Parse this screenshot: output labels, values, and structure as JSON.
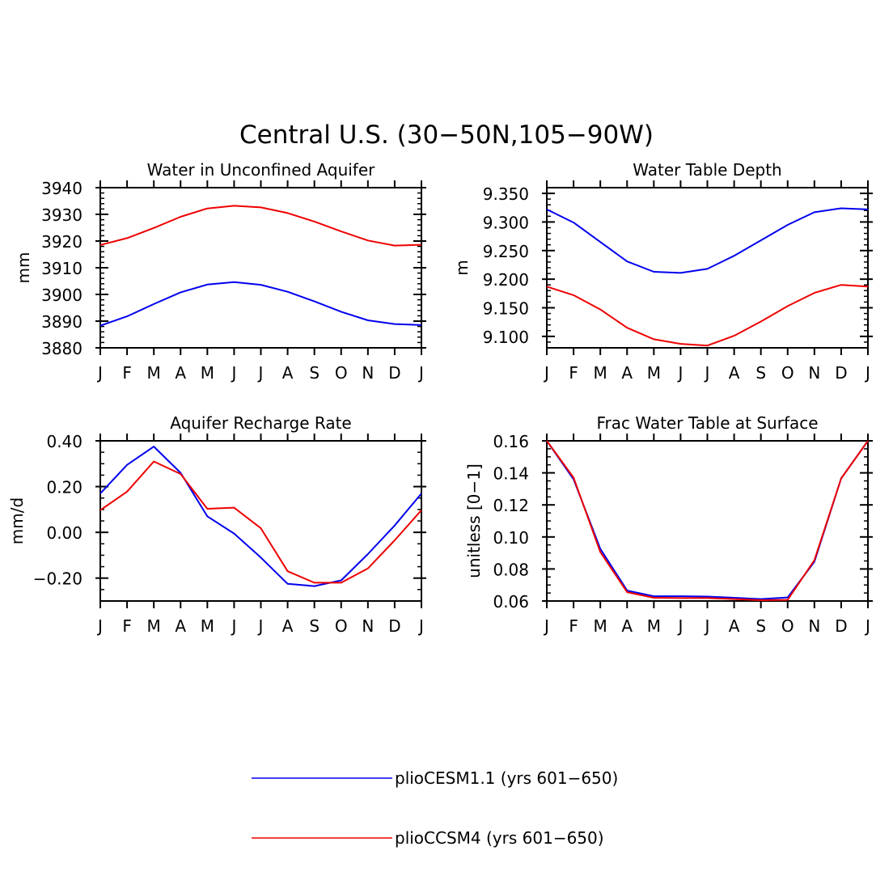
{
  "figure": {
    "title": "Central U.S. (30−50N,105−90W)"
  },
  "colors": {
    "blue": "#0000ee",
    "red": "#ee0000",
    "axis": "#000000"
  },
  "legend": [
    {
      "name": "plioCESM1.1 (yrs 601−650)",
      "color": "#0000ee"
    },
    {
      "name": "plioCCSM4 (yrs 601−650)",
      "color": "#ee0000"
    }
  ],
  "chart_data": [
    {
      "type": "line",
      "title": "Water in Unconfined Aquifer",
      "ylabel": "mm",
      "xlabel": "",
      "categories": [
        "J",
        "F",
        "M",
        "A",
        "M",
        "J",
        "J",
        "A",
        "S",
        "O",
        "N",
        "D",
        "J"
      ],
      "ylim": [
        3880,
        3940
      ],
      "yticks": [
        3880,
        3890,
        3900,
        3910,
        3920,
        3930,
        3940
      ],
      "yticklabels": [
        "3880",
        "3890",
        "3900",
        "3910",
        "3920",
        "3930",
        "3940"
      ],
      "yminor": 2,
      "series": [
        {
          "name": "plioCESM1.1 (yrs 601−650)",
          "color": "#0000ee",
          "values": [
            3888.3,
            3891.8,
            3896.4,
            3900.8,
            3903.7,
            3904.6,
            3903.6,
            3901.0,
            3897.4,
            3893.5,
            3890.3,
            3888.9,
            3888.5
          ]
        },
        {
          "name": "plioCCSM4 (yrs 601−650)",
          "color": "#ee0000",
          "values": [
            3918.5,
            3921.1,
            3924.9,
            3929.1,
            3932.2,
            3933.2,
            3932.6,
            3930.5,
            3927.3,
            3923.6,
            3920.2,
            3918.3,
            3918.6
          ]
        }
      ]
    },
    {
      "type": "line",
      "title": "Water Table Depth",
      "ylabel": "m",
      "xlabel": "",
      "categories": [
        "J",
        "F",
        "M",
        "A",
        "M",
        "J",
        "J",
        "A",
        "S",
        "O",
        "N",
        "D",
        "J"
      ],
      "ylim": [
        9.08,
        9.36
      ],
      "yticks": [
        9.1,
        9.15,
        9.2,
        9.25,
        9.3,
        9.35
      ],
      "yticklabels": [
        "9.100",
        "9.150",
        "9.200",
        "9.250",
        "9.300",
        "9.350"
      ],
      "yminor": 0.01,
      "series": [
        {
          "name": "plioCESM1.1 (yrs 601−650)",
          "color": "#0000ee",
          "values": [
            9.322,
            9.299,
            9.265,
            9.231,
            9.213,
            9.211,
            9.218,
            9.241,
            9.268,
            9.295,
            9.317,
            9.324,
            9.322
          ]
        },
        {
          "name": "plioCCSM4 (yrs 601−650)",
          "color": "#ee0000",
          "values": [
            9.187,
            9.172,
            9.147,
            9.115,
            9.095,
            9.087,
            9.084,
            9.101,
            9.126,
            9.153,
            9.176,
            9.19,
            9.187
          ]
        }
      ]
    },
    {
      "type": "line",
      "title": "Aquifer Recharge Rate",
      "ylabel": "mm/d",
      "xlabel": "",
      "categories": [
        "J",
        "F",
        "M",
        "A",
        "M",
        "J",
        "J",
        "A",
        "S",
        "O",
        "N",
        "D",
        "J"
      ],
      "ylim": [
        -0.3,
        0.4
      ],
      "yticks": [
        -0.2,
        0.0,
        0.2,
        0.4
      ],
      "yticklabels": [
        "−0.20",
        "0.00",
        "0.20",
        "0.40"
      ],
      "yminor": 0.05,
      "series": [
        {
          "name": "plioCESM1.1 (yrs 601−650)",
          "color": "#0000ee",
          "values": [
            0.17,
            0.295,
            0.375,
            0.26,
            0.07,
            -0.005,
            -0.11,
            -0.225,
            -0.235,
            -0.21,
            -0.095,
            0.03,
            0.17
          ]
        },
        {
          "name": "plioCCSM4 (yrs 601−650)",
          "color": "#ee0000",
          "values": [
            0.097,
            0.178,
            0.31,
            0.255,
            0.103,
            0.108,
            0.018,
            -0.17,
            -0.22,
            -0.22,
            -0.158,
            -0.035,
            0.097
          ]
        }
      ]
    },
    {
      "type": "line",
      "title": "Frac Water Table at Surface",
      "ylabel": "unitless [0−1]",
      "xlabel": "",
      "categories": [
        "J",
        "F",
        "M",
        "A",
        "M",
        "J",
        "J",
        "A",
        "S",
        "O",
        "N",
        "D",
        "J"
      ],
      "ylim": [
        0.06,
        0.16
      ],
      "yticks": [
        0.06,
        0.08,
        0.1,
        0.12,
        0.14,
        0.16
      ],
      "yticklabels": [
        "0.06",
        "0.08",
        "0.10",
        "0.12",
        "0.14",
        "0.16"
      ],
      "yminor": 0.005,
      "series": [
        {
          "name": "plioCESM1.1 (yrs 601−650)",
          "color": "#0000ee",
          "values": [
            0.16,
            0.136,
            0.0925,
            0.0665,
            0.063,
            0.063,
            0.0628,
            0.062,
            0.0612,
            0.0622,
            0.0845,
            0.1365,
            0.16
          ]
        },
        {
          "name": "plioCCSM4 (yrs 601−650)",
          "color": "#ee0000",
          "values": [
            0.16,
            0.137,
            0.0905,
            0.0655,
            0.062,
            0.0618,
            0.0618,
            0.0612,
            0.0605,
            0.0607,
            0.0855,
            0.1365,
            0.16
          ]
        }
      ]
    }
  ]
}
